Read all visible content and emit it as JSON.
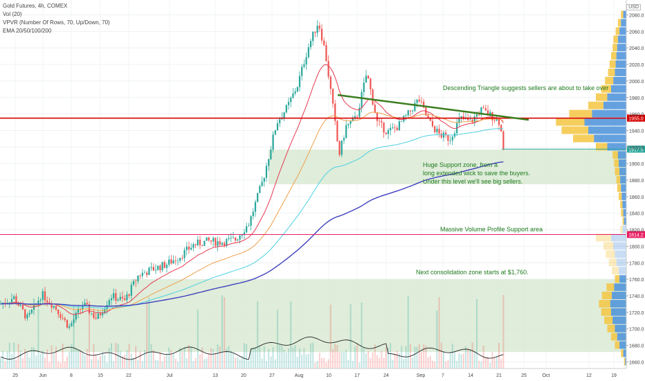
{
  "legend": {
    "title": "Gold Futures, 4h, COMEX",
    "vol": "Vol (20)",
    "vpvr": "VPVR (Number Of Rows, 70, Up/Down, 70)",
    "ema": "EMA 20/50/100/200"
  },
  "currency": "USD",
  "annotations": {
    "triangle": "Descending Triangle suggests sellers are about to take over",
    "support_1": "Huge Support zone, from a",
    "support_2": "long extended wick to save the buyers.",
    "support_3": "Under this level we'll see big sellers.",
    "volume_profile": "Massive Volume Profile Support area",
    "consolidation": "Next consolidation zone starts at $1,760."
  },
  "colors": {
    "up": "#26a69a",
    "down": "#ef5350",
    "ema20": "#e53950",
    "ema50": "#f0a04b",
    "ema100": "#4dd0e1",
    "ema200": "#3f3fbf",
    "zone": "#d9ead3",
    "trendline": "#3b7d1e",
    "level_red": "#d50000",
    "level_pink": "#e91e63",
    "vp_up": "#4a90d9",
    "vp_down": "#f5c542"
  },
  "chart_data": {
    "type": "candlestick",
    "y_axis": {
      "ticks": [
        1660,
        1680,
        1700,
        1720,
        1740,
        1760,
        1780,
        1800,
        1820,
        1840,
        1860,
        1880,
        1900,
        1920,
        1940,
        1960,
        1980,
        2000,
        2020,
        2040,
        2060,
        2080
      ],
      "tick_labels": [
        "1660.0",
        "1680.0",
        "1700.0",
        "1720.0",
        "1740.0",
        "1760.0",
        "1780.0",
        "1800.0",
        "1820.0",
        "1840.0",
        "1860.0",
        "1880.0",
        "1900.0",
        "1920.0",
        "1940.0",
        "1960.0",
        "1980.0",
        "2000.0",
        "2020.0",
        "2040.0",
        "2060.0",
        "2080.0"
      ],
      "range": [
        1652,
        2098
      ]
    },
    "x_axis": {
      "tick_labels": [
        "25",
        "Jun",
        "8",
        "15",
        "22",
        "Jul",
        "13",
        "20",
        "27",
        "Aug",
        "10",
        "17",
        "24",
        "Sep",
        "7",
        "14",
        "21",
        "25",
        "Oct",
        "12",
        "19"
      ]
    },
    "price_path": [
      [
        0,
        1730
      ],
      [
        20,
        1738
      ],
      [
        40,
        1712
      ],
      [
        60,
        1742
      ],
      [
        80,
        1726
      ],
      [
        100,
        1702
      ],
      [
        120,
        1730
      ],
      [
        140,
        1712
      ],
      [
        160,
        1740
      ],
      [
        180,
        1734
      ],
      [
        200,
        1765
      ],
      [
        220,
        1772
      ],
      [
        240,
        1778
      ],
      [
        260,
        1788
      ],
      [
        280,
        1802
      ],
      [
        300,
        1806
      ],
      [
        320,
        1805
      ],
      [
        340,
        1808
      ],
      [
        360,
        1828
      ],
      [
        380,
        1880
      ],
      [
        400,
        1950
      ],
      [
        415,
        1968
      ],
      [
        430,
        1995
      ],
      [
        445,
        2040
      ],
      [
        460,
        2072
      ],
      [
        470,
        2035
      ],
      [
        480,
        1975
      ],
      [
        490,
        1910
      ],
      [
        500,
        1945
      ],
      [
        515,
        1955
      ],
      [
        530,
        2010
      ],
      [
        545,
        1950
      ],
      [
        560,
        1938
      ],
      [
        575,
        1945
      ],
      [
        590,
        1960
      ],
      [
        605,
        1978
      ],
      [
        620,
        1950
      ],
      [
        635,
        1935
      ],
      [
        650,
        1930
      ],
      [
        665,
        1955
      ],
      [
        680,
        1950
      ],
      [
        695,
        1965
      ],
      [
        710,
        1958
      ],
      [
        722,
        1950
      ],
      [
        728,
        1918
      ]
    ],
    "levels": [
      {
        "value": 1955.0,
        "label": "1955.0",
        "color": "#d50000"
      },
      {
        "value": 1917.5,
        "label": "1917.5",
        "color": "#26a69a"
      },
      {
        "value": 1814.2,
        "label": "1814.2",
        "color": "#e91e63"
      }
    ],
    "zones": [
      {
        "from": 1875,
        "to": 1917
      },
      {
        "from": 1672,
        "to": 1760
      }
    ],
    "trendline": {
      "from_price": 1983,
      "to_price": 1953
    },
    "volume_profile": [
      [
        1660,
        3,
        3
      ],
      [
        1670,
        8,
        6
      ],
      [
        1680,
        18,
        12
      ],
      [
        1690,
        24,
        16
      ],
      [
        1700,
        30,
        20
      ],
      [
        1710,
        36,
        22
      ],
      [
        1720,
        40,
        26
      ],
      [
        1730,
        42,
        30
      ],
      [
        1740,
        38,
        26
      ],
      [
        1750,
        32,
        20
      ],
      [
        1760,
        18,
        12
      ],
      [
        1770,
        20,
        18
      ],
      [
        1780,
        26,
        20
      ],
      [
        1790,
        30,
        24
      ],
      [
        1800,
        34,
        26
      ],
      [
        1810,
        40,
        40
      ],
      [
        1820,
        10,
        6
      ],
      [
        1830,
        6,
        4
      ],
      [
        1840,
        8,
        6
      ],
      [
        1850,
        10,
        6
      ],
      [
        1860,
        12,
        8
      ],
      [
        1870,
        14,
        10
      ],
      [
        1880,
        16,
        10
      ],
      [
        1890,
        18,
        12
      ],
      [
        1900,
        20,
        12
      ],
      [
        1910,
        22,
        14
      ],
      [
        1920,
        50,
        30
      ],
      [
        1930,
        85,
        55
      ],
      [
        1940,
        100,
        70
      ],
      [
        1950,
        110,
        75
      ],
      [
        1960,
        90,
        60
      ],
      [
        1970,
        60,
        40
      ],
      [
        1980,
        50,
        30
      ],
      [
        1990,
        40,
        26
      ],
      [
        2000,
        34,
        22
      ],
      [
        2010,
        30,
        18
      ],
      [
        2020,
        28,
        16
      ],
      [
        2030,
        26,
        14
      ],
      [
        2040,
        24,
        12
      ],
      [
        2050,
        22,
        12
      ],
      [
        2060,
        18,
        10
      ],
      [
        2070,
        14,
        8
      ],
      [
        2080,
        8,
        6
      ]
    ]
  }
}
